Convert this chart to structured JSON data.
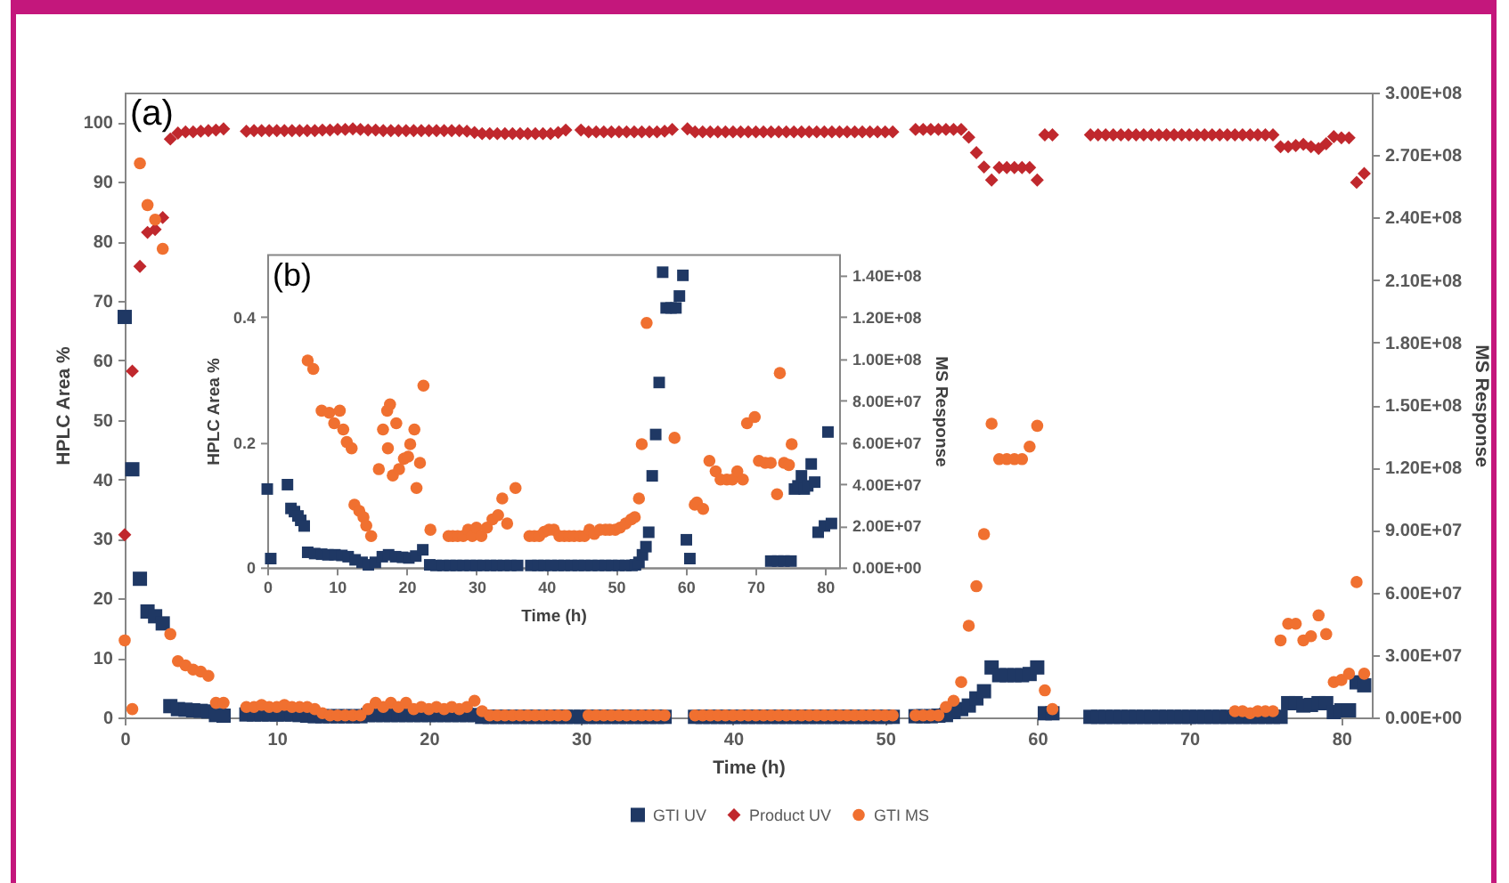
{
  "chart_data": [
    {
      "type": "scatter",
      "title": "(a)",
      "xlabel": "Time (h)",
      "ylabel": "HPLC Area %",
      "y2label": "MS Response",
      "legend": "bottom",
      "xlim": [
        0,
        82
      ],
      "xticks": [
        0,
        10,
        20,
        30,
        40,
        50,
        60,
        70,
        80
      ],
      "ylim": [
        0,
        105
      ],
      "yticks": [
        0,
        10,
        20,
        30,
        40,
        50,
        60,
        70,
        80,
        90,
        100
      ],
      "y2lim": [
        0,
        300000000
      ],
      "y2ticks": [
        {
          "value": 0,
          "label": "0.00E+00"
        },
        {
          "value": 30000000,
          "label": "3.00E+07"
        },
        {
          "value": 60000000,
          "label": "6.00E+07"
        },
        {
          "value": 90000000,
          "label": "9.00E+07"
        },
        {
          "value": 120000000,
          "label": "1.20E+08"
        },
        {
          "value": 150000000,
          "label": "1.50E+08"
        },
        {
          "value": 180000000,
          "label": "1.80E+08"
        },
        {
          "value": 210000000,
          "label": "2.10E+08"
        },
        {
          "value": 240000000,
          "label": "2.40E+08"
        },
        {
          "value": 270000000,
          "label": "2.70E+08"
        },
        {
          "value": 300000000,
          "label": "3.00E+08"
        }
      ],
      "x": [
        0,
        0.5,
        1,
        1.5,
        2,
        2.5,
        3,
        3.5,
        4,
        4.5,
        5,
        5.5,
        6,
        6.5,
        8,
        8.5,
        9,
        9.5,
        10,
        10.5,
        11,
        11.5,
        12,
        12.5,
        13,
        13.5,
        14,
        14.5,
        15,
        15.5,
        16,
        16.5,
        17,
        17.5,
        18,
        18.5,
        19,
        19.5,
        20,
        20.5,
        21,
        21.5,
        22,
        22.5,
        23,
        23.5,
        24,
        24.5,
        25,
        25.5,
        26,
        26.5,
        27,
        27.5,
        28,
        28.5,
        29,
        29.5,
        30,
        30.5,
        31,
        31.5,
        32,
        32.5,
        33,
        33.5,
        34,
        34.5,
        35,
        35.5,
        36,
        37,
        37.5,
        38,
        38.5,
        39,
        39.5,
        40,
        40.5,
        41,
        41.5,
        42,
        42.5,
        43,
        43.5,
        44,
        44.5,
        45,
        45.5,
        46,
        46.5,
        47,
        47.5,
        48,
        48.5,
        49,
        49.5,
        50,
        50.5,
        52,
        52.5,
        53,
        53.5,
        54,
        54.5,
        55,
        55.5,
        56,
        56.5,
        57,
        57.5,
        58,
        58.5,
        59,
        59.5,
        60,
        60.5,
        61,
        63.5,
        64,
        64.5,
        65,
        65.5,
        66,
        66.5,
        67,
        67.5,
        68,
        68.5,
        69,
        69.5,
        70,
        70.5,
        71,
        71.5,
        72,
        72.5,
        73,
        73.5,
        74,
        74.5,
        75,
        75.5,
        76,
        76.5,
        77,
        77.5,
        78,
        78.5,
        79,
        79.5,
        80,
        80.5,
        81,
        81.5
      ],
      "series": [
        {
          "name": "GTI UV",
          "color": "#1f3864",
          "marker": "square",
          "values": [
            67.3,
            41.7,
            23.3,
            17.8,
            17,
            15.8,
            1.9,
            1.4,
            1.3,
            1.2,
            1.1,
            1,
            0.4,
            0.3,
            0.5,
            0.5,
            0.5,
            0.5,
            0.5,
            0.5,
            0.5,
            0.4,
            0.3,
            0.2,
            0.2,
            0.2,
            0.2,
            0.2,
            0.2,
            0.2,
            0.4,
            0.4,
            0.4,
            0.4,
            0.4,
            0.4,
            0.4,
            0.4,
            0.4,
            0.4,
            0.4,
            0.4,
            0.4,
            0.4,
            0.4,
            0.1,
            0.1,
            0.1,
            0.1,
            0.1,
            0.1,
            0.1,
            0.1,
            0.1,
            0.1,
            0.1,
            0.1,
            0.1,
            0.1,
            0.1,
            0.1,
            0.1,
            0.1,
            0.1,
            0.1,
            0.1,
            0.1,
            0.1,
            0.1,
            0.1,
            null,
            null,
            0.1,
            0.1,
            0.1,
            0.1,
            0.1,
            0.1,
            0.1,
            0.1,
            0.1,
            0.1,
            0.1,
            0.1,
            0.1,
            0.1,
            0.1,
            0.1,
            0.1,
            0.1,
            0.1,
            0.1,
            0.1,
            0.1,
            0.1,
            0.1,
            0.1,
            0.1,
            0.1,
            0.2,
            0.2,
            0.2,
            0.3,
            0.4,
            0.9,
            1.4,
            2,
            3.2,
            4.4,
            8.4,
            7.1,
            7.1,
            7.1,
            7.1,
            7.3,
            8.4,
            0.7,
            0.7,
            0.1,
            0.1,
            0.1,
            0.1,
            0.1,
            0.1,
            0.1,
            0.1,
            0.1,
            0.1,
            0.1,
            0.1,
            0.1,
            0.1,
            0.1,
            0.1,
            0.1,
            0.1,
            0.1,
            0.1,
            0.1,
            0.1,
            0.1,
            0.1,
            0.1,
            0.1,
            2.4,
            2.4,
            2,
            2.1,
            2.4,
            2.4,
            0.9,
            1.2,
            1.2,
            5.9,
            5.4
          ]
        },
        {
          "name": "Product UV",
          "color": "#c0282d",
          "marker": "diamond",
          "values": [
            30.7,
            58.2,
            75.8,
            81.5,
            82,
            84,
            97.2,
            98.2,
            98.4,
            98.4,
            98.5,
            98.6,
            98.7,
            98.9,
            98.5,
            98.6,
            98.6,
            98.6,
            98.6,
            98.6,
            98.6,
            98.6,
            98.6,
            98.6,
            98.7,
            98.7,
            98.8,
            98.8,
            98.9,
            98.8,
            98.7,
            98.7,
            98.6,
            98.6,
            98.6,
            98.6,
            98.6,
            98.6,
            98.6,
            98.6,
            98.6,
            98.6,
            98.6,
            98.5,
            98.3,
            98.1,
            98.1,
            98.1,
            98.1,
            98.1,
            98.1,
            98.1,
            98.1,
            98.1,
            98.1,
            98.3,
            98.7,
            null,
            98.7,
            98.4,
            98.4,
            98.4,
            98.4,
            98.4,
            98.4,
            98.4,
            98.4,
            98.4,
            98.4,
            98.5,
            98.8,
            98.9,
            98.4,
            98.4,
            98.4,
            98.4,
            98.4,
            98.4,
            98.4,
            98.4,
            98.4,
            98.4,
            98.4,
            98.4,
            98.4,
            98.4,
            98.4,
            98.4,
            98.4,
            98.4,
            98.4,
            98.4,
            98.4,
            98.4,
            98.4,
            98.4,
            98.4,
            98.4,
            98.4,
            98.8,
            98.8,
            98.8,
            98.8,
            98.8,
            98.8,
            98.8,
            97.5,
            94.9,
            92.5,
            90.3,
            92.4,
            92.4,
            92.4,
            92.4,
            92.4,
            90.3,
            97.9,
            97.9,
            97.9,
            97.9,
            97.9,
            97.9,
            97.9,
            97.9,
            97.9,
            97.9,
            97.9,
            97.9,
            97.9,
            97.9,
            97.9,
            97.9,
            97.9,
            97.9,
            97.9,
            97.9,
            97.9,
            97.9,
            97.9,
            97.9,
            97.9,
            97.9,
            97.9,
            95.9,
            95.9,
            96.1,
            96.3,
            95.9,
            95.6,
            96.4,
            97.6,
            97.4,
            97.4,
            89.9,
            91.4
          ]
        },
        {
          "name": "GTI MS",
          "color": "#f07030",
          "marker": "circle",
          "axis": "y2",
          "values": [
            37000000.0,
            4000000.0,
            266000000.0,
            246000000.0,
            239000000.0,
            225000000.0,
            40000000.0,
            27000000.0,
            25000000.0,
            23000000.0,
            22000000.0,
            20000000.0,
            7000000.0,
            7000000.0,
            5000000.0,
            5000000.0,
            6000000.0,
            5000000.0,
            5000000.0,
            6000000.0,
            5000000.0,
            5000000.0,
            5000000.0,
            4000000.0,
            2000000.0,
            1000000.0,
            1000000.0,
            1000000.0,
            1000000.0,
            1000000.0,
            4000000.0,
            7000000.0,
            5000000.0,
            7000000.0,
            5000000.0,
            7000000.0,
            4000000.0,
            5000000.0,
            4000000.0,
            5000000.0,
            4000000.0,
            5000000.0,
            4000000.0,
            5000000.0,
            8000000.0,
            3000000.0,
            1000000.0,
            1000000.0,
            1000000.0,
            1000000.0,
            1000000.0,
            1000000.0,
            1000000.0,
            1000000.0,
            1000000.0,
            1000000.0,
            1000000.0,
            null,
            null,
            1000000.0,
            1000000.0,
            1000000.0,
            1000000.0,
            1000000.0,
            1000000.0,
            1000000.0,
            1000000.0,
            1000000.0,
            1000000.0,
            1000000.0,
            null,
            null,
            1000000.0,
            1000000.0,
            1000000.0,
            1000000.0,
            1000000.0,
            1000000.0,
            1000000.0,
            1000000.0,
            1000000.0,
            1000000.0,
            1000000.0,
            1000000.0,
            1000000.0,
            1000000.0,
            1000000.0,
            1000000.0,
            1000000.0,
            1000000.0,
            1000000.0,
            1000000.0,
            1000000.0,
            1000000.0,
            1000000.0,
            1000000.0,
            1000000.0,
            1000000.0,
            1000000.0,
            1000000.0,
            1000000.0,
            1000000.0,
            1000000.0,
            5000000.0,
            8000000.0,
            17000000.0,
            44000000.0,
            63000000.0,
            88000000.0,
            141000000.0,
            124000000.0,
            124000000.0,
            124000000.0,
            124000000.0,
            130000000.0,
            140000000.0,
            13000000.0,
            4000000.0,
            null,
            null,
            null,
            null,
            null,
            null,
            null,
            null,
            null,
            null,
            null,
            null,
            null,
            null,
            null,
            null,
            null,
            null,
            null,
            3000000.0,
            3000000.0,
            2000000.0,
            3000000.0,
            3000000.0,
            3000000.0,
            37000000.0,
            45000000.0,
            45000000.0,
            37000000.0,
            39000000.0,
            49000000.0,
            40000000.0,
            17000000.0,
            18000000.0,
            21000000.0,
            65000000.0,
            21000000.0
          ]
        }
      ]
    },
    {
      "type": "scatter",
      "title": "(b)",
      "xlabel": "Time (h)",
      "ylabel": "HPLC Area %",
      "y2label": "MS Response",
      "xlim": [
        0,
        82
      ],
      "xticks": [
        0,
        10,
        20,
        30,
        40,
        50,
        60,
        70,
        80
      ],
      "ylim": [
        0,
        0.5
      ],
      "yticks": [
        0,
        0.2,
        0.4
      ],
      "y2lim": [
        0,
        150000000
      ],
      "y2ticks": [
        {
          "value": 0,
          "label": "0.00E+00"
        },
        {
          "value": 20000000,
          "label": "2.00E+07"
        },
        {
          "value": 40000000,
          "label": "4.00E+07"
        },
        {
          "value": 60000000,
          "label": "6.00E+07"
        },
        {
          "value": 80000000,
          "label": "8.00E+07"
        },
        {
          "value": 100000000,
          "label": "1.00E+08"
        },
        {
          "value": 120000000,
          "label": "1.20E+08"
        },
        {
          "value": 140000000,
          "label": "1.40E+08"
        }
      ],
      "series": [
        {
          "color": "#1f3864",
          "marker": "square",
          "x": [
            0,
            0.5,
            2.9,
            3.4,
            3.9,
            4.4,
            4.8,
            5.3,
            5.8,
            6.8,
            7.8,
            8.7,
            9.7,
            10.7,
            11.6,
            12.6,
            13.6,
            14.5,
            15.5,
            16.5,
            17.4,
            18.4,
            19.4,
            20.3,
            21.3,
            22.3,
            23.3,
            24.2,
            25.2,
            26.2,
            27.1,
            28.1,
            29.1,
            30,
            31,
            32,
            32.9,
            33.9,
            34.9,
            35.9,
            37.8,
            38.8,
            39.7,
            40.7,
            41.7,
            42.6,
            43.6,
            44.6,
            45.5,
            46.5,
            47.5,
            48.5,
            49.4,
            50.4,
            51.4,
            52.3,
            52.8,
            53.3,
            53.8,
            54.3,
            54.7,
            55.2,
            55.7,
            56.2,
            56.7,
            57.2,
            57.9,
            58.6,
            59.1,
            59.6,
            60.1,
            60.6,
            72.2,
            73.2,
            74.1,
            75.1,
            75.6,
            76.1,
            76.6,
            77,
            77.5,
            78,
            78.5,
            79,
            79.9,
            80.4,
            80.9
          ],
          "values": [
            0.125,
            0.014,
            0.132,
            0.094,
            0.089,
            0.082,
            0.075,
            0.066,
            0.024,
            0.022,
            0.021,
            0.02,
            0.02,
            0.019,
            0.017,
            0.012,
            0.008,
            0.004,
            0.008,
            0.017,
            0.02,
            0.017,
            0.016,
            0.015,
            0.018,
            0.028,
            0.004,
            0.003,
            0.003,
            0.003,
            0.003,
            0.003,
            0.003,
            0.003,
            0.003,
            0.003,
            0.003,
            0.003,
            0.003,
            0.003,
            0.003,
            0.003,
            0.003,
            0.003,
            0.003,
            0.003,
            0.003,
            0.003,
            0.003,
            0.003,
            0.003,
            0.003,
            0.003,
            0.003,
            0.003,
            0.003,
            0.004,
            0.008,
            0.02,
            0.033,
            0.056,
            0.146,
            0.212,
            0.295,
            0.471,
            0.414,
            0.414,
            0.414,
            0.433,
            0.466,
            0.044,
            0.014,
            0.01,
            0.01,
            0.01,
            0.01,
            0.125,
            0.13,
            0.146,
            0.125,
            0.13,
            0.165,
            0.136,
            0.056,
            0.066,
            0.216,
            0.07
          ]
        },
        {
          "color": "#f07030",
          "marker": "circle",
          "axis": "y2",
          "x": [
            5.8,
            6.6,
            7.8,
            8.9,
            9.6,
            10.4,
            10.9,
            11.4,
            12.1,
            12.5,
            13.2,
            13.8,
            14.2,
            14.9,
            16,
            16.6,
            17.2,
            17.3,
            17.6,
            18,
            18.5,
            18.9,
            19.6,
            20.2,
            20.5,
            21.1,
            21.4,
            21.9,
            22.4,
            23.4,
            26,
            26.6,
            27.3,
            28.1,
            28.8,
            29.4,
            30,
            30.7,
            31.5,
            32.3,
            33.1,
            33.7,
            34.4,
            35.6,
            37.6,
            38.3,
            39,
            39.7,
            40.4,
            41.1,
            41.9,
            42.6,
            43.3,
            44,
            44.8,
            45.5,
            46.2,
            46.9,
            47.7,
            48.5,
            49.1,
            49.9,
            50.6,
            51.4,
            52.2,
            52.7,
            53.3,
            53.7,
            54.4,
            58.4,
            61.3,
            61.6,
            62.5,
            63.4,
            64.3,
            65,
            65.9,
            66.7,
            67.4,
            68.2,
            68.8,
            69.9,
            70.5,
            71.4,
            72.2,
            73.1,
            73.5,
            74.1,
            74.8,
            75.2
          ],
          "values": [
            99000000.0,
            95000000.0,
            75000000.0,
            74000000.0,
            69000000.0,
            75000000.0,
            66000000.0,
            60000000.0,
            57000000.0,
            30000000.0,
            27000000.0,
            24000000.0,
            20000000.0,
            15000000.0,
            47000000.0,
            66000000.0,
            75000000.0,
            57000000.0,
            78000000.0,
            44000000.0,
            69000000.0,
            47000000.0,
            52000000.0,
            53000000.0,
            59000000.0,
            66000000.0,
            38000000.0,
            50000000.0,
            87000000.0,
            18000000.0,
            15000000.0,
            15000000.0,
            15000000.0,
            15000000.0,
            18000000.0,
            15000000.0,
            19000000.0,
            15000000.0,
            19000000.0,
            23000000.0,
            25000000.0,
            33000000.0,
            21000000.0,
            38000000.0,
            15000000.0,
            15000000.0,
            15000000.0,
            17000000.0,
            18000000.0,
            18000000.0,
            15000000.0,
            15000000.0,
            15000000.0,
            15000000.0,
            15000000.0,
            15000000.0,
            18000000.0,
            16000000.0,
            18000000.0,
            18000000.0,
            18000000.0,
            18000000.0,
            19000000.0,
            21000000.0,
            23000000.0,
            24000000.0,
            33000000.0,
            59000000.0,
            117000000.0,
            62000000.0,
            30000000.0,
            31000000.0,
            28000000.0,
            51000000.0,
            46000000.0,
            42000000.0,
            42000000.0,
            42000000.0,
            46000000.0,
            42000000.0,
            69000000.0,
            72000000.0,
            51000000.0,
            50000000.0,
            50000000.0,
            35000000.0,
            93000000.0,
            50000000.0,
            49000000.0,
            59000000.0
          ]
        }
      ]
    }
  ]
}
